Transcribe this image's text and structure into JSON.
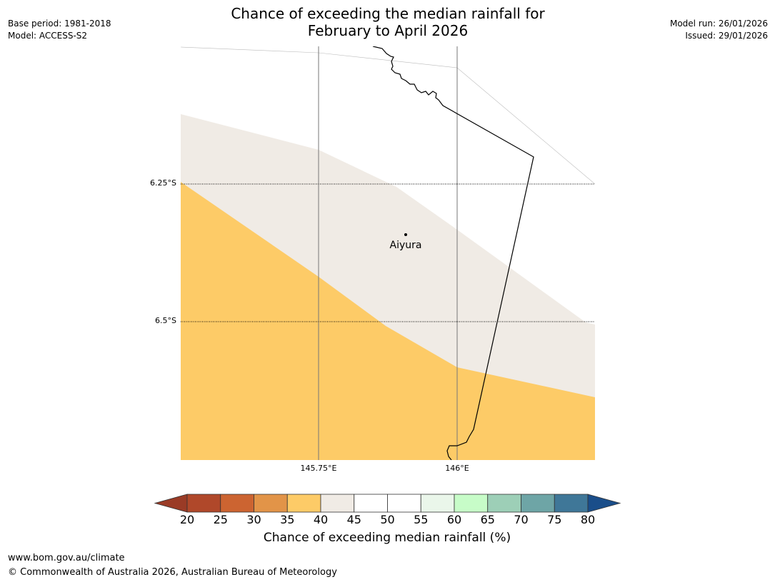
{
  "meta": {
    "base_period": "Base period: 1981-2018",
    "model": "Model: ACCESS-S2",
    "model_run": "Model run: 26/01/2026",
    "issued": "Issued: 29/01/2026"
  },
  "title": {
    "line1": "Chance of exceeding the median rainfall for",
    "line2": "February to April 2026"
  },
  "map": {
    "lat_labels": [
      "6.25°S",
      "6.5°S"
    ],
    "lon_labels": [
      "145.75°E",
      "146°E"
    ],
    "place": "Aiyura"
  },
  "legend": {
    "ticks": [
      "20",
      "25",
      "30",
      "35",
      "40",
      "45",
      "50",
      "55",
      "60",
      "65",
      "70",
      "75",
      "80"
    ],
    "colors": [
      "#b0482a",
      "#cc6431",
      "#e29448",
      "#fdcb67",
      "#f0ebe5",
      "#ffffff",
      "#ffffff",
      "#eaf6ea",
      "#c7fcc8",
      "#9dcfb7",
      "#6ea5a6",
      "#3f7798"
    ],
    "under_color": "#9a3b26",
    "over_color": "#1a4e8a",
    "label": "Chance of exceeding median rainfall (%)"
  },
  "footer": {
    "url": "www.bom.gov.au/climate",
    "copyright": "© Commonwealth of Australia 2026, Australian Bureau of Meteorology"
  }
}
